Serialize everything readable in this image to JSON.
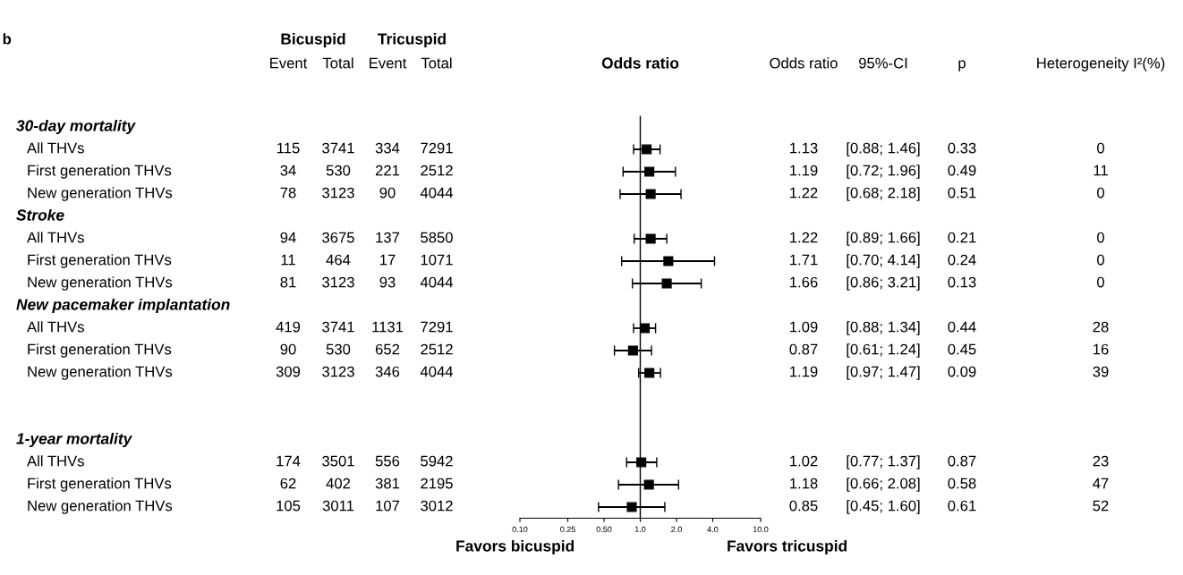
{
  "chart_data": [
    {
      "type": "other",
      "categories": [
        "30-day mortality",
        "All THVs",
        "First generation THVs",
        "New generation THVs",
        "Stroke",
        "All THVs",
        "First generation THVs",
        "New generation THVs",
        "New pacemaker implantation",
        "All THVs",
        "First generation THVs",
        "New generation THVs",
        null,
        null,
        "1-year mortality",
        "All THVs",
        "First generation THVs",
        "New generation THVs"
      ],
      "series": [
        {
          "name": "Event",
          "values": [
            null,
            115,
            34,
            78,
            null,
            94,
            11,
            81,
            null,
            419,
            90,
            309,
            null,
            null,
            null,
            174,
            62,
            105
          ]
        },
        {
          "name": "Total",
          "values": [
            null,
            3741,
            530,
            3123,
            null,
            3675,
            464,
            3123,
            null,
            3741,
            530,
            3123,
            null,
            null,
            null,
            3501,
            402,
            3011
          ]
        },
        {
          "name": "Event",
          "values": [
            null,
            334,
            221,
            90,
            null,
            137,
            17,
            93,
            null,
            1131,
            652,
            346,
            null,
            null,
            null,
            556,
            381,
            107
          ]
        },
        {
          "name": "Total",
          "values": [
            null,
            7291,
            2512,
            4044,
            null,
            5850,
            1071,
            4044,
            null,
            7291,
            2512,
            4044,
            null,
            null,
            null,
            5942,
            2195,
            3012
          ]
        },
        {
          "name": "Odds ratio",
          "values": [
            null,
            1.13,
            1.19,
            1.22,
            null,
            1.22,
            1.71,
            1.66,
            null,
            1.09,
            0.87,
            1.19,
            null,
            null,
            null,
            1.02,
            1.18,
            0.85
          ]
        },
        {
          "name": "95%-CI",
          "values": [
            null,
            0.88,
            0.72,
            0.68,
            null,
            0.89,
            0.7,
            0.86,
            null,
            0.88,
            0.61,
            0.97,
            null,
            null,
            null,
            0.77,
            0.66,
            0.45
          ],
          "value_labels": [
            null,
            "[0.88; 1.46]",
            "[0.72; 1.96]",
            "[0.68; 2.18]",
            null,
            "[0.89; 1.66]",
            "[0.70; 4.14]",
            "[0.86; 3.21]",
            null,
            "[0.88; 1.34]",
            "[0.61; 1.24]",
            "[0.97; 1.47]",
            null,
            null,
            null,
            "[0.77; 1.37]",
            "[0.66; 2.08]",
            "[0.45; 1.60]"
          ]
        },
        {
          "name": "p",
          "values": [
            null,
            0.33,
            0.49,
            0.51,
            null,
            0.21,
            0.24,
            0.13,
            null,
            0.44,
            0.45,
            0.09,
            null,
            null,
            null,
            0.87,
            0.58,
            0.61
          ]
        },
        {
          "name": "Heterogeneity I²(%)",
          "values": [
            null,
            0,
            11,
            0,
            null,
            0,
            0,
            0,
            null,
            28,
            16,
            39,
            null,
            null,
            null,
            23,
            47,
            52
          ]
        }
      ],
      "data_labels": true,
      "annotations": [
        "b",
        "Bicuspid",
        "Tricuspid"
      ]
    },
    {
      "type": "scatter",
      "orientation": "horizontal",
      "title": "Odds ratio",
      "values": [
        null,
        1.13,
        1.19,
        1.22,
        null,
        1.22,
        1.71,
        1.66,
        null,
        1.09,
        0.87,
        1.19,
        null,
        null,
        null,
        1.02,
        1.18,
        0.85
      ],
      "errors": [
        null,
        [
          0.88,
          1.46
        ],
        [
          0.72,
          1.96
        ],
        [
          0.68,
          2.18
        ],
        null,
        [
          0.89,
          1.66
        ],
        [
          0.7,
          4.14
        ],
        [
          0.86,
          3.21
        ],
        null,
        [
          0.88,
          1.34
        ],
        [
          0.61,
          1.24
        ],
        [
          0.97,
          1.47
        ],
        null,
        null,
        null,
        [
          0.77,
          1.37
        ],
        [
          0.66,
          2.08
        ],
        [
          0.45,
          1.6
        ]
      ],
      "color": "#000000",
      "marker": "square",
      "log": "x",
      "tick_labels": "x",
      "xlim": [
        0.1,
        10
      ],
      "xticks": [
        {
          "value": 0.1,
          "label": "0.10"
        },
        {
          "value": 0.25,
          "label": "0.25"
        },
        {
          "value": 0.5,
          "label": "0.50"
        },
        {
          "value": 1,
          "label": "1.0"
        },
        {
          "value": 2,
          "label": "2.0"
        },
        {
          "value": 4,
          "label": "4.0"
        },
        {
          "value": 10,
          "label": "10.0"
        }
      ],
      "ref_lines": [
        {
          "axis": "x",
          "value": 1,
          "color": "#000000"
        }
      ],
      "annotations": [
        "Favors bicuspid",
        "Favors tricuspid"
      ]
    }
  ]
}
